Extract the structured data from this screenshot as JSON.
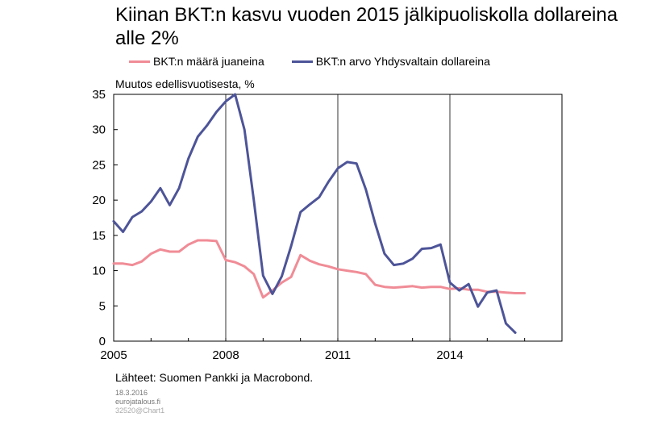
{
  "chart_data": {
    "type": "line",
    "title": "Kiinan BKT:n kasvu vuoden 2015 jälkipuoliskolla dollareina alle 2%",
    "ylabel": "Muutos edellisvuotisesta, %",
    "ylim": [
      0,
      35
    ],
    "yticks": [
      "0",
      "5",
      "10",
      "15",
      "20",
      "25",
      "30",
      "35"
    ],
    "xlim": [
      2005,
      2017
    ],
    "xticks": [
      "2005",
      "2008",
      "2011",
      "2014"
    ],
    "legend": "top",
    "grid": "vertical at year ticks",
    "source": "Lähteet: Suomen Pankki ja Macrobond.",
    "series": [
      {
        "name": "BKT:n määrä juaneina",
        "color": "#f08c96",
        "x": [
          2005.0,
          2005.25,
          2005.5,
          2005.75,
          2006.0,
          2006.25,
          2006.5,
          2006.75,
          2007.0,
          2007.25,
          2007.5,
          2007.75,
          2008.0,
          2008.25,
          2008.5,
          2008.75,
          2009.0,
          2009.25,
          2009.5,
          2009.75,
          2010.0,
          2010.25,
          2010.5,
          2010.75,
          2011.0,
          2011.25,
          2011.5,
          2011.75,
          2012.0,
          2012.25,
          2012.5,
          2012.75,
          2013.0,
          2013.25,
          2013.5,
          2013.75,
          2014.0,
          2014.25,
          2014.5,
          2014.75,
          2015.0,
          2015.25,
          2015.5,
          2015.75,
          2016.0
        ],
        "values": [
          11.0,
          11.0,
          10.8,
          11.3,
          12.4,
          13.0,
          12.7,
          12.7,
          13.7,
          14.3,
          14.3,
          14.2,
          11.5,
          11.2,
          10.6,
          9.5,
          6.2,
          7.2,
          8.3,
          9.1,
          12.2,
          11.4,
          10.9,
          10.6,
          10.2,
          10.0,
          9.8,
          9.5,
          8.0,
          7.7,
          7.6,
          7.7,
          7.8,
          7.6,
          7.7,
          7.7,
          7.4,
          7.5,
          7.3,
          7.3,
          7.0,
          7.0,
          6.9,
          6.8,
          6.8
        ]
      },
      {
        "name": "BKT:n arvo Yhdysvaltain dollareina",
        "color": "#4d5498",
        "x": [
          2005.0,
          2005.25,
          2005.5,
          2005.75,
          2006.0,
          2006.25,
          2006.5,
          2006.75,
          2007.0,
          2007.25,
          2007.5,
          2007.75,
          2008.0,
          2008.25,
          2008.5,
          2008.75,
          2009.0,
          2009.25,
          2009.5,
          2009.75,
          2010.0,
          2010.25,
          2010.5,
          2010.75,
          2011.0,
          2011.25,
          2011.5,
          2011.75,
          2012.0,
          2012.25,
          2012.5,
          2012.75,
          2013.0,
          2013.25,
          2013.5,
          2013.75,
          2014.0,
          2014.25,
          2014.5,
          2014.75,
          2015.0,
          2015.25,
          2015.5,
          2015.75,
          2016.0
        ],
        "values": [
          17.0,
          15.5,
          17.6,
          18.4,
          19.8,
          21.7,
          19.3,
          21.7,
          25.9,
          29.0,
          30.6,
          32.5,
          34.0,
          35.0,
          30.0,
          20.0,
          9.3,
          6.7,
          9.2,
          13.5,
          18.3,
          19.4,
          20.4,
          22.6,
          24.5,
          25.4,
          25.2,
          21.5,
          16.7,
          12.4,
          10.8,
          11.0,
          11.7,
          13.1,
          13.2,
          13.7,
          8.3,
          7.2,
          8.1,
          4.9,
          6.9,
          7.2,
          2.5,
          1.2,
          null
        ]
      }
    ]
  },
  "footer": {
    "date": "18.3.2016",
    "site": "eurojatalous.fi",
    "code": "32520@Chart1"
  }
}
